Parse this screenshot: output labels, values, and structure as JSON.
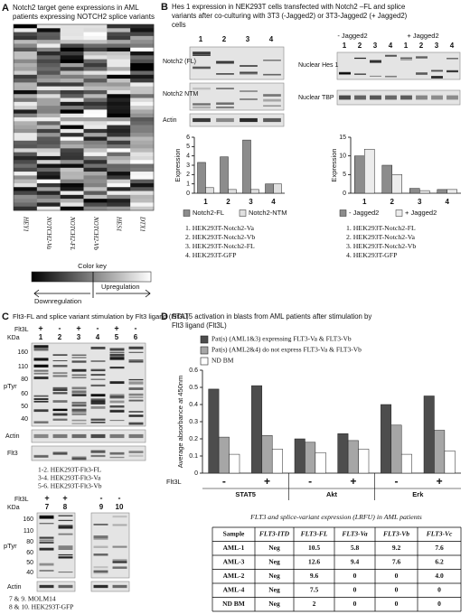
{
  "panel_a": {
    "letter": "A",
    "title": [
      "Notch2 target gene expressions  in AML",
      "patients expressing NOTCH2 splice variants"
    ],
    "genes": [
      "HEY1",
      "NOTCH2-Va",
      "NOTCH2-FL",
      "NOTCH2-Vb",
      "HES1",
      "DTX1"
    ],
    "color_key": "Color key",
    "down": "Downregulation",
    "up": "Upregulation"
  },
  "panel_b": {
    "letter": "B",
    "title": [
      "Hes 1 expression in NEK293T cells transfected with Notch2 –FL and splice",
      "variants after co-culturing with 3T3 (-Jagged2) or 3T3-Jagged2 (+ Jagged2)",
      "cells"
    ],
    "lanes": [
      "1",
      "2",
      "3",
      "4"
    ],
    "blot_left_labels": [
      "Notch2 (FL)",
      "Notch2 NTM",
      "Actin"
    ],
    "jagged": [
      "- Jagged2",
      "+ Jagged2"
    ],
    "lanes_right": [
      "1",
      "2",
      "3",
      "4",
      "1",
      "2",
      "3",
      "4"
    ],
    "blot_right_labels": [
      "Nuclear Hes 1",
      "Nuclear TBP"
    ],
    "legend_left": [
      "1. HEK293T-Notch2-Va",
      "2. HEK293T-Notch2-Vb",
      "3. HEK293T-Notch2-FL",
      "4. HEK293T-GFP"
    ],
    "legend_right": [
      "1. HEK293T-Notch2-FL",
      "2. HEK293T-Notch2-Va",
      "3. HEK293T-Notch2-Vb",
      "4. HEK293T-GFP"
    ]
  },
  "panel_c": {
    "letter": "C",
    "title": "Flt3-FL and splice variant stimulation by Flt3 ligand (Flt3L)",
    "flt3l": "Flt3L",
    "signs": [
      "+",
      "-",
      "+",
      "-",
      "+",
      "-"
    ],
    "lanes": [
      "1",
      "2",
      "3",
      "4",
      "5",
      "6"
    ],
    "kda": "KDa",
    "mw": [
      "160",
      "110",
      "80",
      "60",
      "50",
      "40"
    ],
    "ptyr": "pTyr",
    "actin": "Actin",
    "flt3": "Flt3",
    "legend": [
      "1-2. HEK293T-Flt3-FL",
      "3-4. HEK293T-Flt3-Va",
      "5-6. HEK293T-Flt3-Vb"
    ],
    "signs2": [
      "+",
      "+",
      "-",
      "-"
    ],
    "lanes2": [
      "7",
      "8",
      "9",
      "10"
    ],
    "legend2": [
      "7 & 9. MOLM14",
      "8 & 10. HEK293T-GFP"
    ]
  },
  "panel_d": {
    "letter": "D",
    "title": [
      "STAT5 activation in blasts from AML patients  after stimulation by",
      "Flt3 ligand (Flt3L)"
    ],
    "table_title": "FLT3 and splice-variant expression  (LRFU) in AML patients",
    "table": {
      "header": [
        "Sample",
        "FLT3-ITD",
        "FLT3-FL",
        "FLT3-Va",
        "FLT3-Vb",
        "FLT3-Vc"
      ],
      "rows": [
        [
          "AML-1",
          "Neg",
          "10.5",
          "5.8",
          "9.2",
          "7.6"
        ],
        [
          "AML-3",
          "Neg",
          "12.6",
          "9.4",
          "7.6",
          "6.2"
        ],
        [
          "AML-2",
          "Neg",
          "9.6",
          "0",
          "0",
          "4.0"
        ],
        [
          "AML-4",
          "Neg",
          "7.5",
          "0",
          "0",
          "0"
        ],
        [
          "ND BM",
          "Neg",
          "2",
          "0",
          "0",
          "0"
        ]
      ]
    }
  },
  "chart_data": [
    {
      "type": "bar",
      "y_label": "Expression",
      "categories": [
        "1",
        "2",
        "3",
        "4"
      ],
      "series": [
        {
          "name": "Notch2-FL",
          "color": "#8c8c8c",
          "values": [
            3.3,
            3.9,
            5.7,
            1.0
          ]
        },
        {
          "name": "Notch2-NTM",
          "color": "#e0e0e0",
          "values": [
            0.6,
            0.4,
            0.4,
            1.0
          ]
        }
      ],
      "ylim": [
        0,
        6
      ],
      "yticks": [
        0,
        1,
        2,
        3,
        4,
        5,
        6
      ],
      "legend": "bottom"
    },
    {
      "type": "bar",
      "y_label": "Expression",
      "categories": [
        "1",
        "2",
        "3",
        "4"
      ],
      "series": [
        {
          "name": "- Jagged2",
          "color": "#8c8c8c",
          "values": [
            10,
            7.5,
            1.3,
            1.0
          ]
        },
        {
          "name": "+ Jagged2",
          "color": "#ececec",
          "values": [
            11.8,
            5,
            0.7,
            1.0
          ]
        }
      ],
      "ylim": [
        0,
        15
      ],
      "yticks": [
        0,
        5,
        10,
        15
      ],
      "legend": "bottom"
    },
    {
      "type": "bar",
      "y_label": "Average absorbance at 450nm",
      "x_label": "Flt3L",
      "categories": [
        "-",
        "+",
        "-",
        "+",
        "-",
        "+"
      ],
      "groups": [
        "STAT5",
        "Akt",
        "Erk"
      ],
      "series": [
        {
          "name": "Pat(s) (AML1&3) expressing FLT3-Va & FLT3-Vb",
          "color": "#4d4d4d",
          "values": [
            0.49,
            0.51,
            0.2,
            0.23,
            0.4,
            0.45
          ]
        },
        {
          "name": "Pat(s) (AML2&4) do not express FLT3-Va & FLT3-Vb",
          "color": "#a6a6a6",
          "values": [
            0.21,
            0.22,
            0.18,
            0.19,
            0.28,
            0.25
          ]
        },
        {
          "name": "ND BM",
          "color": "#ffffff",
          "values": [
            0.11,
            0.14,
            0.12,
            0.14,
            0.11,
            0.13
          ]
        }
      ],
      "ylim": [
        0,
        0.6
      ],
      "yticks": [
        0,
        0.1,
        0.2,
        0.3,
        0.4,
        0.5,
        0.6
      ],
      "legend": "top-left"
    }
  ]
}
